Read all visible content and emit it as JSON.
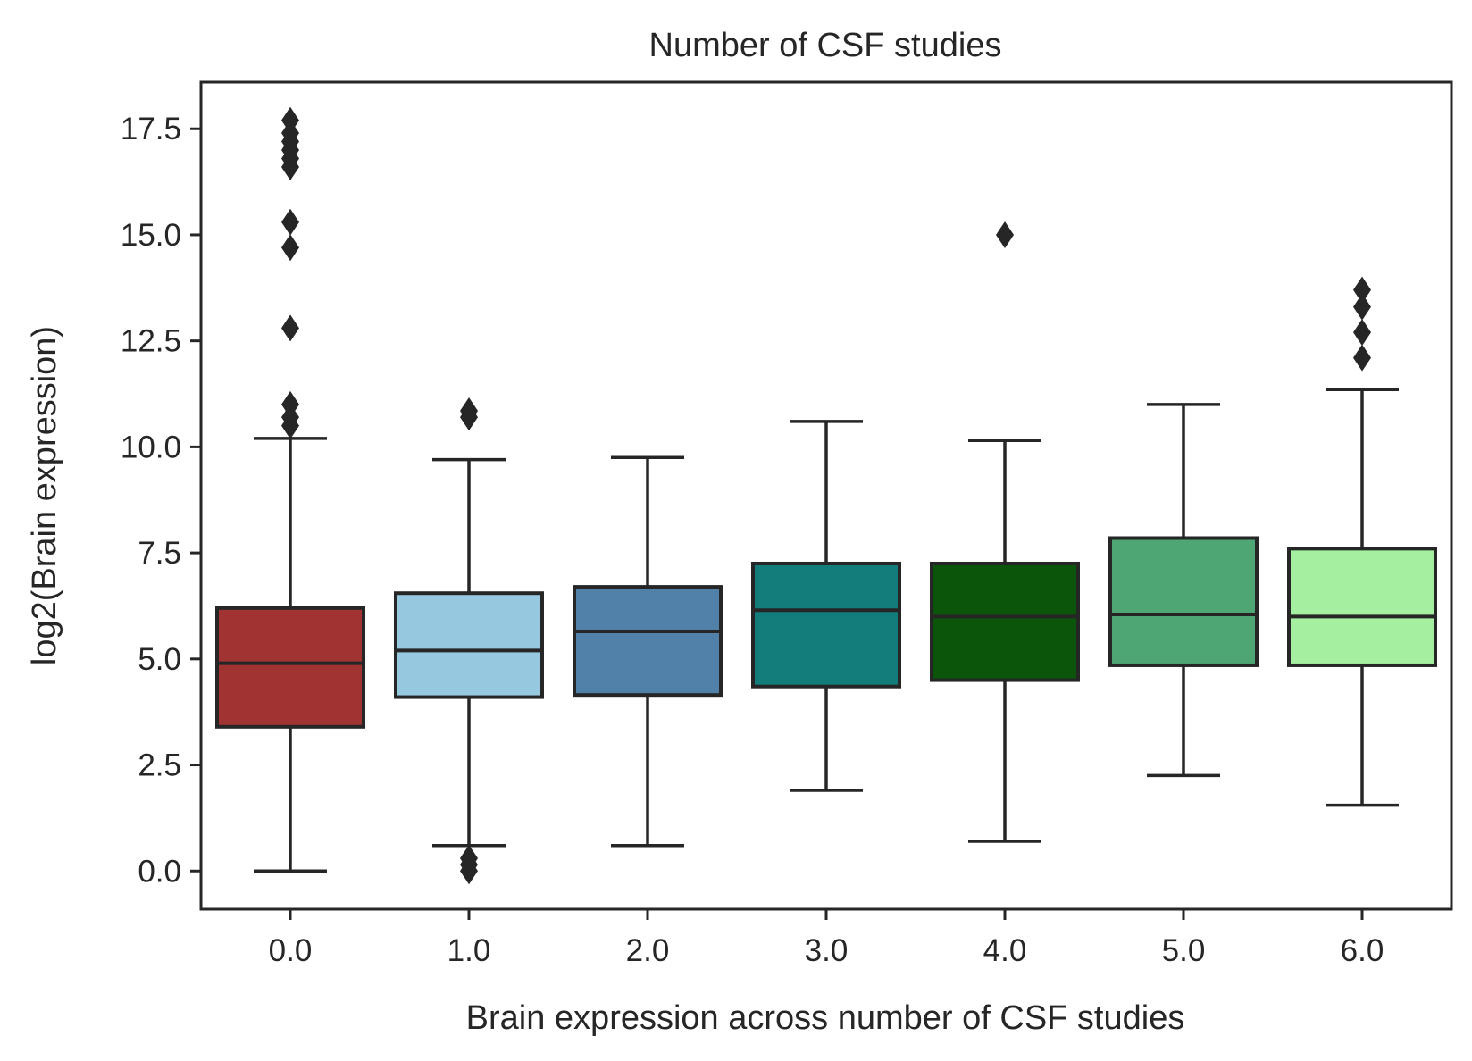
{
  "chart_data": {
    "type": "box",
    "title": "Number of CSF studies",
    "xlabel": "Brain expression across number of CSF studies",
    "ylabel": "log2(Brain expression)",
    "ylim": [
      -0.9,
      18.6
    ],
    "yticks": [
      "0.0",
      "2.5",
      "5.0",
      "7.5",
      "10.0",
      "12.5",
      "15.0",
      "17.5"
    ],
    "ytick_values": [
      0,
      2.5,
      5,
      7.5,
      10,
      12.5,
      15,
      17.5
    ],
    "grid": false,
    "categories": [
      "0.0",
      "1.0",
      "2.0",
      "3.0",
      "4.0",
      "5.0",
      "6.0"
    ],
    "boxes": [
      {
        "category": "0.0",
        "color": "#A23333",
        "whisker_low": 0.0,
        "q1": 3.4,
        "median": 4.9,
        "q3": 6.2,
        "whisker_high": 10.2,
        "outliers": [
          10.5,
          10.7,
          11.0,
          12.8,
          14.7,
          15.3,
          16.6,
          16.8,
          17.0,
          17.2,
          17.4,
          17.7
        ]
      },
      {
        "category": "1.0",
        "color": "#96C8E0",
        "whisker_low": 0.6,
        "q1": 4.1,
        "median": 5.2,
        "q3": 6.55,
        "whisker_high": 9.7,
        "outliers": [
          0.0,
          0.15,
          0.3,
          10.7,
          10.85
        ]
      },
      {
        "category": "2.0",
        "color": "#5181A8",
        "whisker_low": 0.6,
        "q1": 4.15,
        "median": 5.65,
        "q3": 6.7,
        "whisker_high": 9.75,
        "outliers": []
      },
      {
        "category": "3.0",
        "color": "#137D7C",
        "whisker_low": 1.9,
        "q1": 4.35,
        "median": 6.15,
        "q3": 7.25,
        "whisker_high": 10.6,
        "outliers": []
      },
      {
        "category": "4.0",
        "color": "#0B550B",
        "whisker_low": 0.7,
        "q1": 4.5,
        "median": 6.0,
        "q3": 7.25,
        "whisker_high": 10.15,
        "outliers": [
          15.0
        ]
      },
      {
        "category": "5.0",
        "color": "#4EA674",
        "whisker_low": 2.25,
        "q1": 4.85,
        "median": 6.05,
        "q3": 7.85,
        "whisker_high": 11.0,
        "outliers": []
      },
      {
        "category": "6.0",
        "color": "#A4F0A0",
        "whisker_low": 1.55,
        "q1": 4.85,
        "median": 6.0,
        "q3": 7.6,
        "whisker_high": 11.35,
        "outliers": [
          12.1,
          12.7,
          13.3,
          13.7
        ]
      }
    ]
  }
}
